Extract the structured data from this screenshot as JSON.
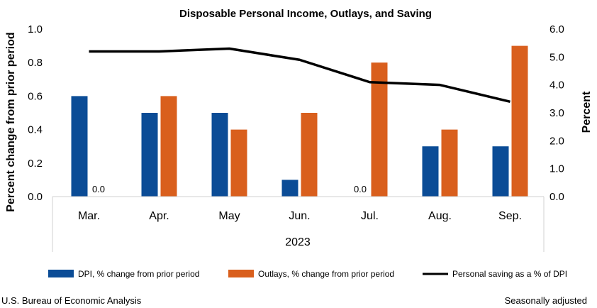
{
  "chart_data": {
    "type": "bar",
    "title": "Disposable Personal Income, Outlays, and Saving",
    "categories": [
      "Mar.",
      "Apr.",
      "May",
      "Jun.",
      "Jul.",
      "Aug.",
      "Sep."
    ],
    "group_label": "2023",
    "ylabel_left": "Percent change from prior period",
    "ylabel_right": "Percent",
    "ylim_left": [
      0,
      1.0
    ],
    "ylim_right": [
      0,
      6.0
    ],
    "yticks_left": [
      "0.0",
      "0.2",
      "0.4",
      "0.6",
      "0.8",
      "1.0"
    ],
    "yticks_right": [
      "0.0",
      "1.0",
      "2.0",
      "3.0",
      "4.0",
      "5.0",
      "6.0"
    ],
    "series": [
      {
        "name": "DPI, % change from prior period",
        "type": "bar",
        "axis": "left",
        "color": "#0b4c96",
        "values": [
          0.6,
          0.5,
          0.5,
          0.1,
          0.0,
          0.3,
          0.3
        ]
      },
      {
        "name": "Outlays, % change from prior period",
        "type": "bar",
        "axis": "left",
        "color": "#d95f1d",
        "values": [
          0.0,
          0.6,
          0.4,
          0.5,
          0.8,
          0.4,
          0.9
        ]
      },
      {
        "name": "Personal saving as a % of DPI",
        "type": "line",
        "axis": "right",
        "color": "#000000",
        "values": [
          5.2,
          5.2,
          5.3,
          4.9,
          4.1,
          4.0,
          3.4
        ]
      }
    ],
    "data_labels": [
      {
        "series": 1,
        "index": 0,
        "text": "0.0"
      },
      {
        "series": 0,
        "index": 4,
        "text": "0.0"
      }
    ],
    "legend_position": "bottom",
    "grid": false
  },
  "footer": {
    "source": "U.S. Bureau of Economic Analysis",
    "note": "Seasonally adjusted"
  }
}
